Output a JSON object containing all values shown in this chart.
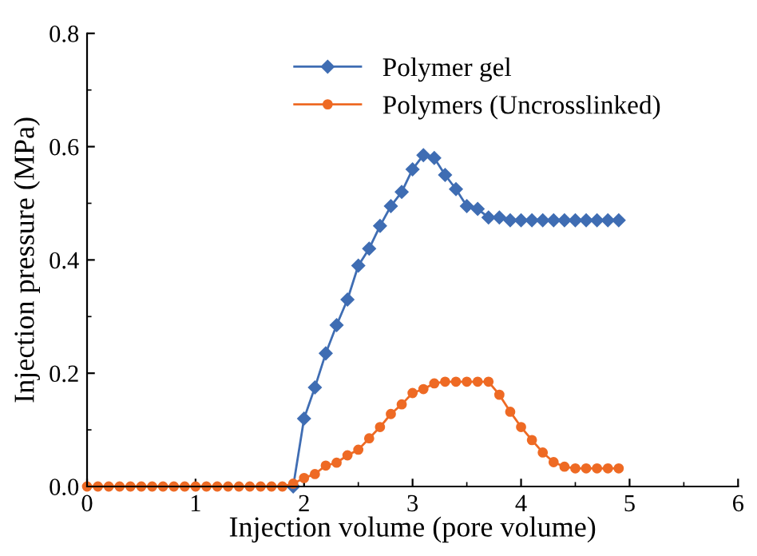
{
  "chart_data": {
    "type": "line",
    "xlabel": "Injection volume (pore volume)",
    "ylabel": "Injection pressure (MPa)",
    "xlim": [
      0,
      6
    ],
    "xticks": [
      0,
      1,
      2,
      3,
      4,
      5,
      6
    ],
    "ylim": [
      0,
      0.8
    ],
    "yticks": [
      {
        "value": 0,
        "label": "0.0"
      },
      {
        "value": 0.2,
        "label": "0.2"
      },
      {
        "value": 0.4,
        "label": "0.4"
      },
      {
        "value": 0.6,
        "label": "0.6"
      },
      {
        "value": 0.8,
        "label": "0.8"
      }
    ],
    "grid": false,
    "legend": "top",
    "line_style": "solid",
    "series": [
      {
        "name": "Polymer gel",
        "color": "#3f6db3",
        "marker": "diamond",
        "x": [
          1.9,
          2.0,
          2.1,
          2.2,
          2.3,
          2.4,
          2.5,
          2.6,
          2.7,
          2.8,
          2.9,
          3.0,
          3.1,
          3.2,
          3.3,
          3.4,
          3.5,
          3.6,
          3.7,
          3.8,
          3.9,
          4.0,
          4.1,
          4.2,
          4.3,
          4.4,
          4.5,
          4.6,
          4.7,
          4.8,
          4.9
        ],
        "values": [
          0,
          0.12,
          0.175,
          0.235,
          0.285,
          0.33,
          0.39,
          0.42,
          0.46,
          0.495,
          0.52,
          0.56,
          0.585,
          0.58,
          0.55,
          0.525,
          0.495,
          0.49,
          0.475,
          0.475,
          0.47,
          0.47,
          0.47,
          0.47,
          0.47,
          0.47,
          0.47,
          0.47,
          0.47,
          0.47,
          0.47
        ]
      },
      {
        "name": "Polymers (Uncrosslinked)",
        "color": "#ee6a24",
        "marker": "circle",
        "x": [
          0,
          0.1,
          0.2,
          0.3,
          0.4,
          0.5,
          0.6,
          0.7,
          0.8,
          0.9,
          1.0,
          1.1,
          1.2,
          1.3,
          1.4,
          1.5,
          1.6,
          1.7,
          1.8,
          1.9,
          2.0,
          2.1,
          2.2,
          2.3,
          2.4,
          2.5,
          2.6,
          2.7,
          2.8,
          2.9,
          3.0,
          3.1,
          3.2,
          3.3,
          3.4,
          3.5,
          3.6,
          3.7,
          3.8,
          3.9,
          4.0,
          4.1,
          4.2,
          4.3,
          4.4,
          4.5,
          4.6,
          4.7,
          4.8,
          4.9
        ],
        "values": [
          0,
          0,
          0,
          0,
          0,
          0,
          0,
          0,
          0,
          0,
          0,
          0,
          0,
          0,
          0,
          0,
          0,
          0,
          0,
          0.005,
          0.015,
          0.022,
          0.037,
          0.042,
          0.055,
          0.065,
          0.085,
          0.105,
          0.128,
          0.145,
          0.165,
          0.172,
          0.182,
          0.185,
          0.185,
          0.185,
          0.185,
          0.185,
          0.162,
          0.132,
          0.105,
          0.082,
          0.06,
          0.043,
          0.035,
          0.032,
          0.032,
          0.032,
          0.032,
          0.032
        ]
      }
    ]
  }
}
